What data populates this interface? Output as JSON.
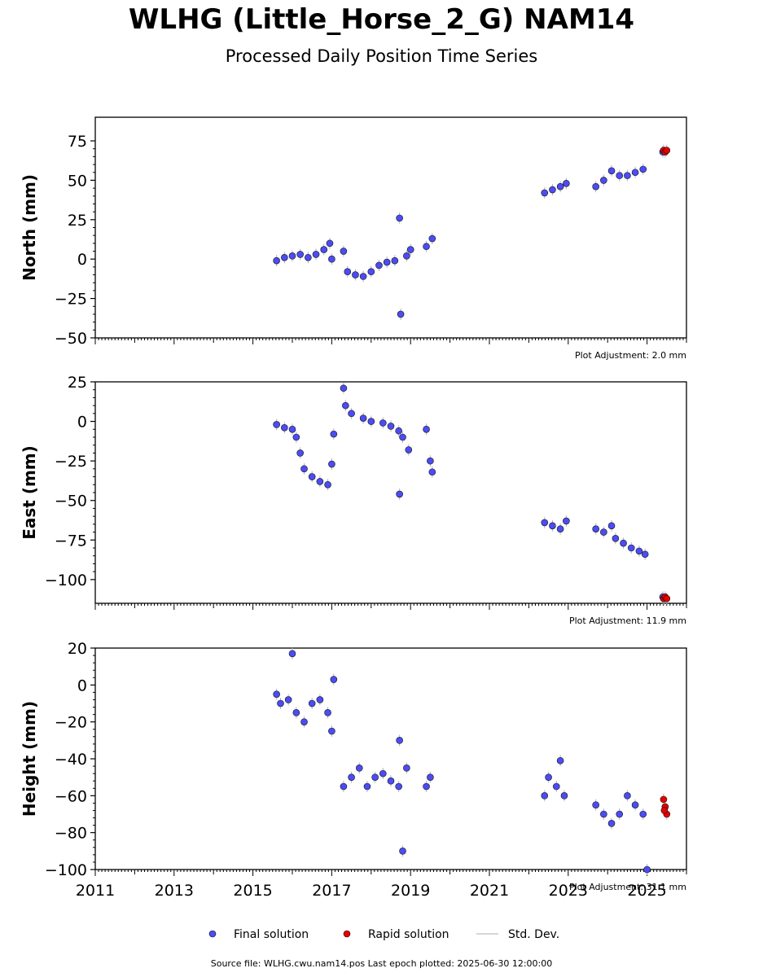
{
  "figure": {
    "title": "WLHG (Little_Horse_2_G) NAM14",
    "subtitle": "Processed Daily Position Time Series",
    "source": "Source file: WLHG.cwu.nam14.pos  Last epoch plotted: 2025-06-30 12:00:00"
  },
  "legend": {
    "final": "Final solution",
    "rapid": "Rapid solution",
    "std": "Std. Dev."
  },
  "colors": {
    "final": "#4c4cf5",
    "rapid": "#e60000",
    "std": "#b4b4b4",
    "edge": "#111111"
  },
  "chart_data": [
    {
      "type": "scatter",
      "ylabel": "North (mm)",
      "adjustment": "Plot Adjustment: 2.0 mm",
      "xlim": [
        2011,
        2026
      ],
      "ylim": [
        -50,
        90
      ],
      "yticks": [
        -50,
        -25,
        0,
        25,
        50,
        75
      ],
      "ytick_labels": [
        "−50",
        "−25",
        "0",
        "25",
        "50",
        "75"
      ],
      "series": [
        {
          "kind": "final",
          "x": [
            2015.6,
            2015.8,
            2016.0,
            2016.2,
            2016.4,
            2016.6,
            2016.8,
            2016.95,
            2017.0,
            2017.3,
            2017.4,
            2017.6,
            2017.8,
            2018.0,
            2018.2,
            2018.4,
            2018.6,
            2018.72,
            2018.75,
            2018.9,
            2019.0,
            2019.4,
            2019.55,
            2022.4,
            2022.6,
            2022.8,
            2022.95,
            2023.7,
            2023.9,
            2024.1,
            2024.3,
            2024.5,
            2024.7,
            2024.9,
            2025.4
          ],
          "y": [
            -1,
            1,
            2,
            3,
            1,
            3,
            6,
            10,
            0,
            5,
            -8,
            -10,
            -11,
            -8,
            -4,
            -2,
            -1,
            26,
            -35,
            2,
            6,
            8,
            13,
            42,
            44,
            46,
            48,
            46,
            50,
            56,
            53,
            53,
            55,
            57,
            68
          ]
        },
        {
          "kind": "rapid",
          "x": [
            2025.42,
            2025.46,
            2025.5
          ],
          "y": [
            69,
            68,
            69
          ]
        }
      ]
    },
    {
      "type": "scatter",
      "ylabel": "East (mm)",
      "adjustment": "Plot Adjustment: 11.9 mm",
      "xlim": [
        2011,
        2026
      ],
      "ylim": [
        -115,
        25
      ],
      "yticks": [
        -100,
        -75,
        -50,
        -25,
        0,
        25
      ],
      "ytick_labels": [
        "−100",
        "−75",
        "−50",
        "−25",
        "0",
        "25"
      ],
      "series": [
        {
          "kind": "final",
          "x": [
            2015.6,
            2015.8,
            2016.0,
            2016.1,
            2016.2,
            2016.3,
            2016.5,
            2016.7,
            2016.9,
            2017.0,
            2017.05,
            2017.3,
            2017.35,
            2017.5,
            2017.8,
            2018.0,
            2018.3,
            2018.5,
            2018.7,
            2018.72,
            2018.8,
            2018.95,
            2019.4,
            2019.5,
            2019.55,
            2022.4,
            2022.6,
            2022.8,
            2022.95,
            2023.7,
            2023.9,
            2024.1,
            2024.2,
            2024.4,
            2024.6,
            2024.8,
            2024.95,
            2025.4
          ],
          "y": [
            -2,
            -4,
            -5,
            -10,
            -20,
            -30,
            -35,
            -38,
            -40,
            -27,
            -8,
            21,
            10,
            5,
            2,
            0,
            -1,
            -3,
            -6,
            -46,
            -10,
            -18,
            -5,
            -25,
            -32,
            -64,
            -66,
            -68,
            -63,
            -68,
            -70,
            -66,
            -74,
            -77,
            -80,
            -82,
            -84,
            -111
          ]
        },
        {
          "kind": "rapid",
          "x": [
            2025.42,
            2025.46,
            2025.5
          ],
          "y": [
            -112,
            -111,
            -112
          ]
        }
      ]
    },
    {
      "type": "scatter",
      "ylabel": "Height (mm)",
      "adjustment": "Plot Adjustment: 31.1 mm",
      "xlim": [
        2011,
        2026
      ],
      "ylim": [
        -100,
        20
      ],
      "yticks": [
        -100,
        -80,
        -60,
        -40,
        -20,
        0,
        20
      ],
      "ytick_labels": [
        "−100",
        "−80",
        "−60",
        "−40",
        "−20",
        "0",
        "20"
      ],
      "xticks": [
        2011,
        2013,
        2015,
        2017,
        2019,
        2021,
        2023,
        2025
      ],
      "xtick_labels": [
        "2011",
        "2013",
        "2015",
        "2017",
        "2019",
        "2021",
        "2023",
        "2025"
      ],
      "series": [
        {
          "kind": "final",
          "x": [
            2015.6,
            2015.7,
            2015.9,
            2016.0,
            2016.1,
            2016.3,
            2016.5,
            2016.7,
            2016.9,
            2017.0,
            2017.05,
            2017.3,
            2017.5,
            2017.7,
            2017.9,
            2018.1,
            2018.3,
            2018.5,
            2018.7,
            2018.72,
            2018.8,
            2018.9,
            2019.4,
            2019.5,
            2022.4,
            2022.5,
            2022.7,
            2022.8,
            2022.9,
            2023.7,
            2023.9,
            2024.1,
            2024.3,
            2024.5,
            2024.7,
            2024.9,
            2025.0
          ],
          "y": [
            -5,
            -10,
            -8,
            17,
            -15,
            -20,
            -10,
            -8,
            -15,
            -25,
            3,
            -55,
            -50,
            -45,
            -55,
            -50,
            -48,
            -52,
            -55,
            -30,
            -90,
            -45,
            -55,
            -50,
            -60,
            -50,
            -55,
            -41,
            -60,
            -65,
            -70,
            -75,
            -70,
            -60,
            -65,
            -70,
            -100
          ]
        },
        {
          "kind": "rapid",
          "x": [
            2025.42,
            2025.46,
            2025.5,
            2025.44
          ],
          "y": [
            -62,
            -66,
            -70,
            -68
          ]
        }
      ]
    }
  ]
}
